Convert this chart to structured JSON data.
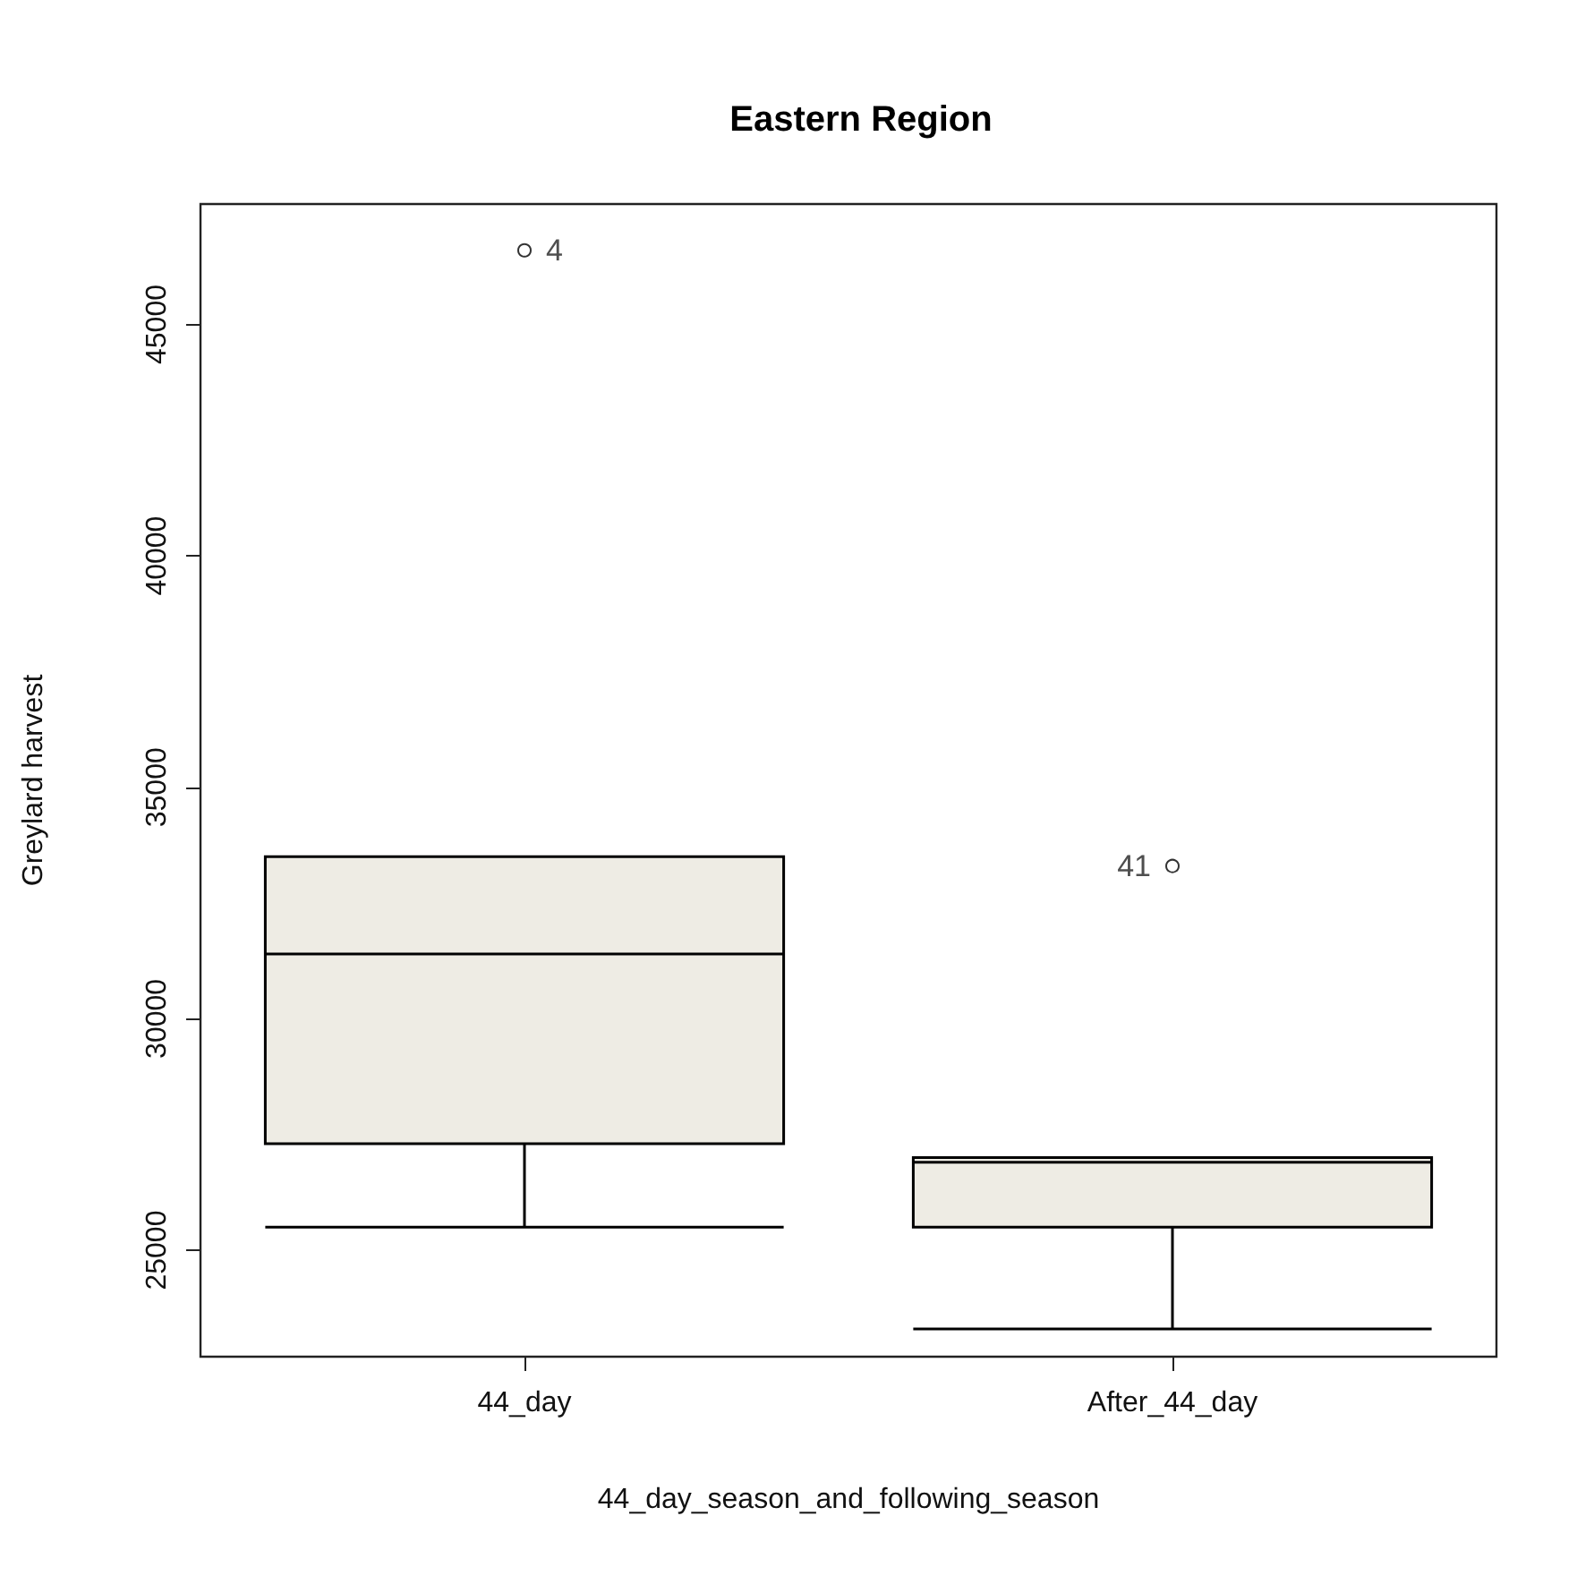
{
  "chart_data": {
    "type": "box",
    "title": "Eastern Region",
    "xlabel": "44_day_season_and_following_season",
    "ylabel": "Greylard harvest",
    "categories": [
      "44_day",
      "After_44_day"
    ],
    "color": "#eeece4",
    "boxes": [
      {
        "low": 25500,
        "q1": 27300,
        "median": 31400,
        "q3": 33500,
        "high": 33500,
        "outliers": [
          46600
        ]
      },
      {
        "low": 23300,
        "q1": 25500,
        "median": 26900,
        "q3": 27000,
        "high": 27000,
        "outliers": [
          33300
        ]
      }
    ],
    "ylim": [
      22700,
      47600
    ],
    "yticks": [
      25000,
      30000,
      35000,
      40000,
      45000
    ],
    "grid": false,
    "marker": "circle",
    "annotations": [
      "4",
      "41"
    ]
  }
}
